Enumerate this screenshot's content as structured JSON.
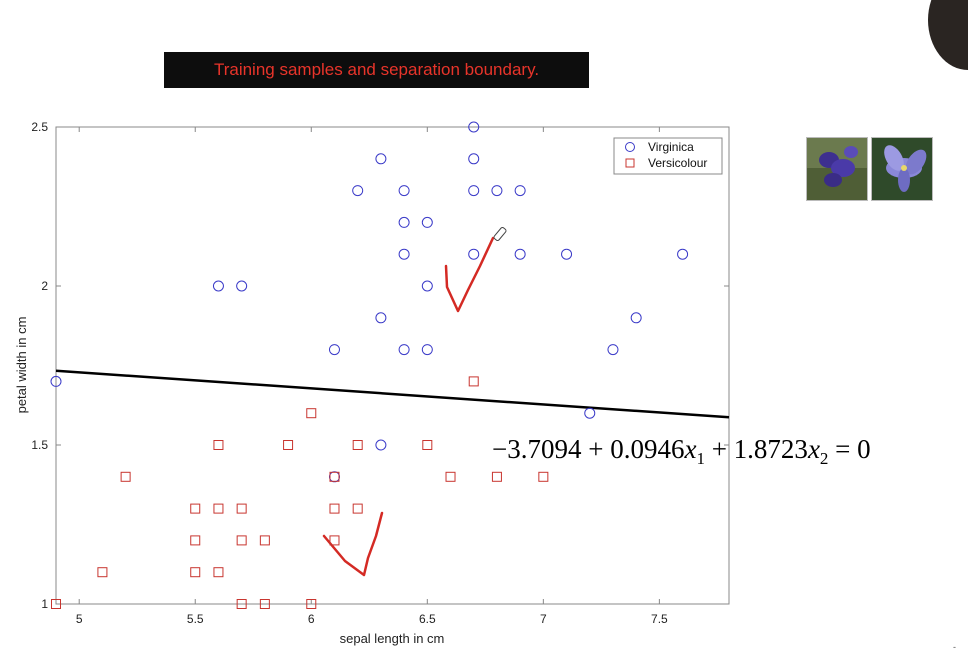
{
  "slide": {
    "banner_title": "Training samples and separation boundary.",
    "equation": {
      "prefix": "−3.7094 + 0.0946",
      "x1": "x",
      "sub1": "1",
      "middle": " + 1.8723",
      "x2": "x",
      "sub2": "2",
      "suffix": " = 0"
    },
    "corner_mark": "-"
  },
  "colors": {
    "virginica": "#3a3ac8",
    "versicolour": "#c8352f",
    "boundary": "#000000",
    "annotation": "#d42a24",
    "banner_bg": "#0d0d0d",
    "banner_text": "#e8342a"
  },
  "chart_data": {
    "type": "scatter",
    "title": "",
    "xlabel": "sepal length in cm",
    "ylabel": "petal width in cm",
    "xlim": [
      4.9,
      7.8
    ],
    "ylim": [
      1.0,
      2.5
    ],
    "xticks": [
      5,
      5.5,
      6,
      6.5,
      7,
      7.5
    ],
    "xtick_labels": [
      "5",
      "5.5",
      "6",
      "6.5",
      "7",
      "7.5"
    ],
    "yticks": [
      1,
      1.5,
      2,
      2.5
    ],
    "ytick_labels": [
      "1",
      "1.5",
      "2",
      "2.5"
    ],
    "grid": false,
    "legend_position": "top-right",
    "series": [
      {
        "name": "Virginica",
        "marker": "circle",
        "color": "#3a3ac8",
        "points": [
          [
            4.9,
            1.7
          ],
          [
            5.6,
            2.0
          ],
          [
            5.7,
            2.0
          ],
          [
            6.1,
            1.8
          ],
          [
            6.1,
            1.4
          ],
          [
            6.2,
            2.3
          ],
          [
            6.3,
            2.4
          ],
          [
            6.3,
            1.9
          ],
          [
            6.3,
            1.5
          ],
          [
            6.4,
            2.3
          ],
          [
            6.4,
            2.2
          ],
          [
            6.4,
            2.1
          ],
          [
            6.4,
            1.8
          ],
          [
            6.5,
            2.2
          ],
          [
            6.5,
            2.0
          ],
          [
            6.5,
            1.8
          ],
          [
            6.7,
            2.5
          ],
          [
            6.7,
            2.4
          ],
          [
            6.7,
            2.3
          ],
          [
            6.7,
            2.1
          ],
          [
            6.8,
            2.3
          ],
          [
            6.9,
            2.3
          ],
          [
            6.9,
            2.1
          ],
          [
            7.1,
            2.1
          ],
          [
            7.2,
            1.6
          ],
          [
            7.3,
            1.8
          ],
          [
            7.4,
            1.9
          ],
          [
            7.6,
            2.1
          ]
        ]
      },
      {
        "name": "Versicolour",
        "marker": "square",
        "color": "#c8352f",
        "points": [
          [
            4.9,
            1.0
          ],
          [
            5.1,
            1.1
          ],
          [
            5.2,
            1.4
          ],
          [
            5.5,
            1.3
          ],
          [
            5.5,
            1.2
          ],
          [
            5.5,
            1.1
          ],
          [
            5.6,
            1.5
          ],
          [
            5.6,
            1.3
          ],
          [
            5.6,
            1.1
          ],
          [
            5.7,
            1.3
          ],
          [
            5.7,
            1.2
          ],
          [
            5.7,
            1.0
          ],
          [
            5.8,
            1.2
          ],
          [
            5.8,
            1.0
          ],
          [
            5.9,
            1.5
          ],
          [
            6.0,
            1.6
          ],
          [
            6.0,
            1.0
          ],
          [
            6.1,
            1.4
          ],
          [
            6.1,
            1.3
          ],
          [
            6.1,
            1.2
          ],
          [
            6.2,
            1.5
          ],
          [
            6.2,
            1.3
          ],
          [
            6.5,
            1.5
          ],
          [
            6.6,
            1.4
          ],
          [
            6.7,
            1.7
          ],
          [
            6.8,
            1.4
          ],
          [
            7.0,
            1.4
          ]
        ]
      }
    ],
    "boundary_line": {
      "intercept": -3.7094,
      "coef_x1": 0.0946,
      "coef_x2": 1.8723,
      "x_range": [
        4.9,
        7.8
      ]
    }
  }
}
